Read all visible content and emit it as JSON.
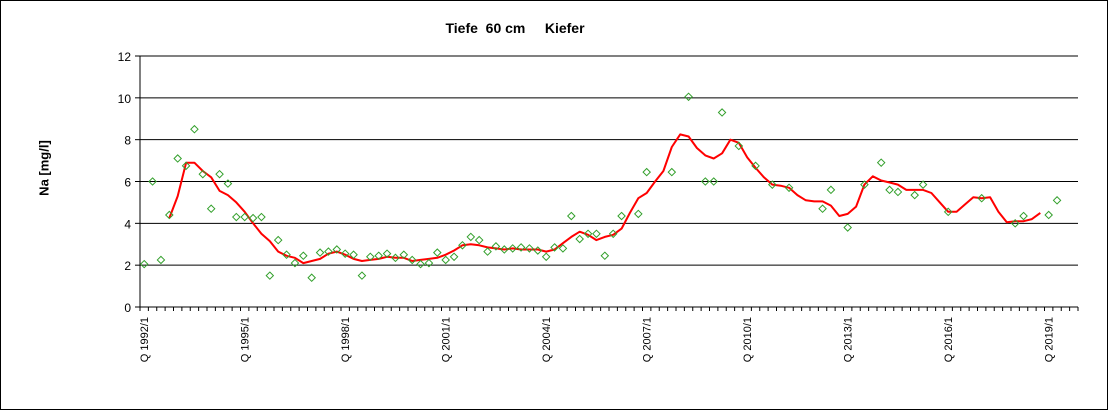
{
  "chart_data": {
    "type": "line",
    "title": "Tiefe  60 cm     Kiefer",
    "ylabel": "Na [mg/l]",
    "xlabel": "",
    "ylim": [
      0,
      12
    ],
    "yticks": [
      0,
      2,
      4,
      6,
      8,
      10,
      12
    ],
    "x_tick_labels": [
      "Q 1992/1",
      "Q 1995/1",
      "Q 1998/1",
      "Q 2001/1",
      "Q 2004/1",
      "Q 2007/1",
      "Q 2010/1",
      "Q 2013/1",
      "Q 2016/1",
      "Q 2019/1"
    ],
    "x_start_quarter": "1992/1",
    "x_end_quarter": "2019/4",
    "grid": "horizontal",
    "colors": {
      "measured": "#33a02c",
      "moving_average": "#ff0000",
      "grid": "#000000"
    },
    "series": [
      {
        "style": "diamond-markers",
        "points": [
          [
            "1992/1",
            2.05
          ],
          [
            "1992/2",
            6.0
          ],
          [
            "1992/3",
            2.25
          ],
          [
            "1992/4",
            4.4
          ],
          [
            "1993/1",
            7.1
          ],
          [
            "1993/2",
            6.75
          ],
          [
            "1993/3",
            8.5
          ],
          [
            "1993/4",
            6.35
          ],
          [
            "1994/1",
            4.7
          ],
          [
            "1994/2",
            6.35
          ],
          [
            "1994/3",
            5.9
          ],
          [
            "1994/4",
            4.3
          ],
          [
            "1995/1",
            4.3
          ],
          [
            "1995/2",
            4.25
          ],
          [
            "1995/3",
            4.3
          ],
          [
            "1995/4",
            1.5
          ],
          [
            "1996/1",
            3.2
          ],
          [
            "1996/2",
            2.5
          ],
          [
            "1996/3",
            2.1
          ],
          [
            "1996/4",
            2.45
          ],
          [
            "1997/1",
            1.4
          ],
          [
            "1997/2",
            2.6
          ],
          [
            "1997/3",
            2.65
          ],
          [
            "1997/4",
            2.75
          ],
          [
            "1998/1",
            2.55
          ],
          [
            "1998/2",
            2.5
          ],
          [
            "1998/3",
            1.5
          ],
          [
            "1998/4",
            2.4
          ],
          [
            "1999/1",
            2.45
          ],
          [
            "1999/2",
            2.55
          ],
          [
            "1999/3",
            2.35
          ],
          [
            "1999/4",
            2.5
          ],
          [
            "2000/1",
            2.25
          ],
          [
            "2000/2",
            2.05
          ],
          [
            "2000/3",
            2.1
          ],
          [
            "2000/4",
            2.6
          ],
          [
            "2001/1",
            2.25
          ],
          [
            "2001/2",
            2.4
          ],
          [
            "2001/3",
            2.95
          ],
          [
            "2001/4",
            3.35
          ],
          [
            "2002/1",
            3.2
          ],
          [
            "2002/2",
            2.65
          ],
          [
            "2002/3",
            2.9
          ],
          [
            "2002/4",
            2.75
          ],
          [
            "2003/1",
            2.8
          ],
          [
            "2003/2",
            2.85
          ],
          [
            "2003/3",
            2.8
          ],
          [
            "2003/4",
            2.7
          ],
          [
            "2004/1",
            2.4
          ],
          [
            "2004/2",
            2.85
          ],
          [
            "2004/3",
            2.8
          ],
          [
            "2004/4",
            4.35
          ],
          [
            "2005/1",
            3.25
          ],
          [
            "2005/2",
            3.5
          ],
          [
            "2005/3",
            3.5
          ],
          [
            "2005/4",
            2.45
          ],
          [
            "2006/1",
            3.5
          ],
          [
            "2006/2",
            4.35
          ],
          [
            "2006/4",
            4.45
          ],
          [
            "2007/1",
            6.45
          ],
          [
            "2007/4",
            6.45
          ],
          [
            "2008/2",
            10.05
          ],
          [
            "2008/4",
            6.0
          ],
          [
            "2009/1",
            6.0
          ],
          [
            "2009/2",
            9.3
          ],
          [
            "2009/4",
            7.7
          ],
          [
            "2010/2",
            6.75
          ],
          [
            "2010/4",
            5.85
          ],
          [
            "2011/2",
            5.7
          ],
          [
            "2012/2",
            4.7
          ],
          [
            "2012/3",
            5.6
          ],
          [
            "2013/1",
            3.8
          ],
          [
            "2013/3",
            5.85
          ],
          [
            "2014/1",
            6.9
          ],
          [
            "2014/2",
            5.6
          ],
          [
            "2014/3",
            5.5
          ],
          [
            "2015/1",
            5.35
          ],
          [
            "2015/2",
            5.85
          ],
          [
            "2016/1",
            4.55
          ],
          [
            "2017/1",
            5.2
          ],
          [
            "2018/1",
            4.0
          ],
          [
            "2018/2",
            4.35
          ],
          [
            "2019/1",
            4.4
          ],
          [
            "2019/2",
            5.1
          ]
        ]
      },
      {
        "style": "line",
        "points": [
          [
            "1992/4",
            4.25
          ],
          [
            "1993/1",
            5.3
          ],
          [
            "1993/2",
            6.9
          ],
          [
            "1993/3",
            6.9
          ],
          [
            "1993/4",
            6.5
          ],
          [
            "1994/1",
            6.2
          ],
          [
            "1994/2",
            5.55
          ],
          [
            "1994/3",
            5.35
          ],
          [
            "1994/4",
            5.0
          ],
          [
            "1995/1",
            4.55
          ],
          [
            "1995/2",
            4.0
          ],
          [
            "1995/3",
            3.5
          ],
          [
            "1995/4",
            3.15
          ],
          [
            "1996/1",
            2.65
          ],
          [
            "1996/2",
            2.45
          ],
          [
            "1996/3",
            2.35
          ],
          [
            "1996/4",
            2.1
          ],
          [
            "1997/1",
            2.2
          ],
          [
            "1997/2",
            2.3
          ],
          [
            "1997/3",
            2.55
          ],
          [
            "1997/4",
            2.65
          ],
          [
            "1998/1",
            2.5
          ],
          [
            "1998/2",
            2.3
          ],
          [
            "1998/3",
            2.2
          ],
          [
            "1998/4",
            2.25
          ],
          [
            "1999/1",
            2.3
          ],
          [
            "1999/2",
            2.4
          ],
          [
            "1999/3",
            2.35
          ],
          [
            "1999/4",
            2.35
          ],
          [
            "2000/1",
            2.2
          ],
          [
            "2000/2",
            2.25
          ],
          [
            "2000/3",
            2.3
          ],
          [
            "2000/4",
            2.35
          ],
          [
            "2001/1",
            2.5
          ],
          [
            "2001/2",
            2.7
          ],
          [
            "2001/3",
            2.95
          ],
          [
            "2001/4",
            3.0
          ],
          [
            "2002/1",
            2.95
          ],
          [
            "2002/2",
            2.85
          ],
          [
            "2002/3",
            2.8
          ],
          [
            "2002/4",
            2.75
          ],
          [
            "2003/1",
            2.8
          ],
          [
            "2003/2",
            2.75
          ],
          [
            "2003/3",
            2.75
          ],
          [
            "2003/4",
            2.75
          ],
          [
            "2004/1",
            2.65
          ],
          [
            "2004/2",
            2.75
          ],
          [
            "2004/3",
            3.05
          ],
          [
            "2004/4",
            3.35
          ],
          [
            "2005/1",
            3.6
          ],
          [
            "2005/2",
            3.45
          ],
          [
            "2005/3",
            3.2
          ],
          [
            "2005/4",
            3.35
          ],
          [
            "2006/1",
            3.45
          ],
          [
            "2006/2",
            3.75
          ],
          [
            "2006/3",
            4.5
          ],
          [
            "2006/4",
            5.2
          ],
          [
            "2007/1",
            5.45
          ],
          [
            "2007/2",
            6.0
          ],
          [
            "2007/3",
            6.5
          ],
          [
            "2007/4",
            7.65
          ],
          [
            "2008/1",
            8.25
          ],
          [
            "2008/2",
            8.15
          ],
          [
            "2008/3",
            7.6
          ],
          [
            "2008/4",
            7.25
          ],
          [
            "2009/1",
            7.1
          ],
          [
            "2009/2",
            7.35
          ],
          [
            "2009/3",
            8.0
          ],
          [
            "2009/4",
            7.85
          ],
          [
            "2010/1",
            7.15
          ],
          [
            "2010/2",
            6.65
          ],
          [
            "2010/3",
            6.2
          ],
          [
            "2010/4",
            5.85
          ],
          [
            "2011/1",
            5.8
          ],
          [
            "2011/2",
            5.7
          ],
          [
            "2011/3",
            5.35
          ],
          [
            "2011/4",
            5.1
          ],
          [
            "2012/1",
            5.05
          ],
          [
            "2012/2",
            5.05
          ],
          [
            "2012/3",
            4.85
          ],
          [
            "2012/4",
            4.35
          ],
          [
            "2013/1",
            4.45
          ],
          [
            "2013/2",
            4.8
          ],
          [
            "2013/3",
            5.85
          ],
          [
            "2013/4",
            6.25
          ],
          [
            "2014/1",
            6.05
          ],
          [
            "2014/2",
            5.95
          ],
          [
            "2014/3",
            5.85
          ],
          [
            "2014/4",
            5.6
          ],
          [
            "2015/1",
            5.6
          ],
          [
            "2015/2",
            5.6
          ],
          [
            "2015/3",
            5.45
          ],
          [
            "2015/4",
            5.0
          ],
          [
            "2016/1",
            4.55
          ],
          [
            "2016/2",
            4.55
          ],
          [
            "2016/3",
            4.9
          ],
          [
            "2016/4",
            5.25
          ],
          [
            "2017/1",
            5.2
          ],
          [
            "2017/2",
            5.25
          ],
          [
            "2017/3",
            4.55
          ],
          [
            "2017/4",
            4.05
          ],
          [
            "2018/1",
            4.1
          ],
          [
            "2018/2",
            4.1
          ],
          [
            "2018/3",
            4.2
          ],
          [
            "2018/4",
            4.5
          ]
        ]
      }
    ]
  }
}
